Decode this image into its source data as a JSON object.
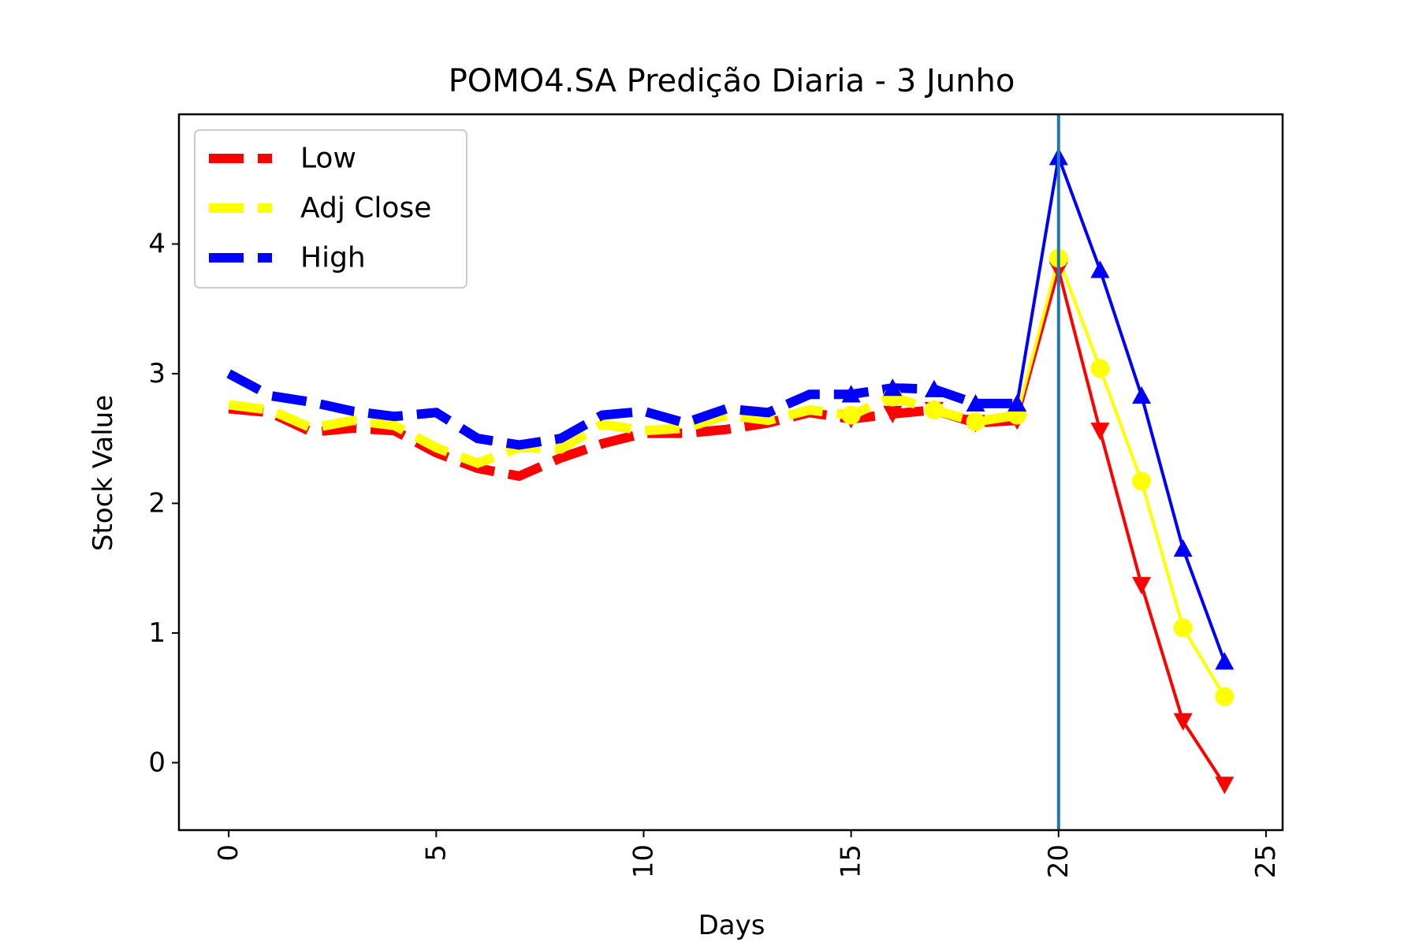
{
  "chart_data": {
    "type": "line",
    "title": "POMO4.SA Predição Diaria - 3 Junho",
    "xlabel": "Days",
    "ylabel": "Stock Value",
    "xlim": [
      -1.2,
      25.4
    ],
    "ylim": [
      -0.52,
      5.0
    ],
    "xticks": [
      0,
      5,
      10,
      15,
      20,
      25
    ],
    "yticks": [
      0,
      1,
      2,
      3,
      4
    ],
    "xtick_rotation": 90,
    "grid": false,
    "legend_position": "top-left",
    "vline": {
      "x": 20,
      "color": "#1f77b4"
    },
    "series": [
      {
        "name": "Low",
        "color": "#ff0000",
        "marker": "triangle-down",
        "historical": {
          "x": [
            0,
            1,
            2,
            3,
            4,
            5,
            6,
            7,
            8,
            9,
            10,
            11,
            12,
            13,
            14,
            15,
            16,
            17,
            18,
            19
          ],
          "y": [
            2.73,
            2.7,
            2.55,
            2.58,
            2.56,
            2.39,
            2.27,
            2.21,
            2.35,
            2.46,
            2.54,
            2.54,
            2.57,
            2.62,
            2.7,
            2.65,
            2.69,
            2.72,
            2.62,
            2.64
          ]
        },
        "predicted": {
          "x": [
            19,
            20,
            21,
            22,
            23,
            24
          ],
          "y": [
            2.64,
            3.8,
            2.56,
            1.37,
            0.32,
            -0.17
          ]
        }
      },
      {
        "name": "Adj Close",
        "color": "#ffff00",
        "marker": "circle",
        "historical": {
          "x": [
            0,
            1,
            2,
            3,
            4,
            5,
            6,
            7,
            8,
            9,
            10,
            11,
            12,
            13,
            14,
            15,
            16,
            17,
            18,
            19
          ],
          "y": [
            2.76,
            2.72,
            2.58,
            2.64,
            2.6,
            2.43,
            2.31,
            2.43,
            2.42,
            2.61,
            2.56,
            2.58,
            2.68,
            2.64,
            2.72,
            2.68,
            2.82,
            2.72,
            2.63,
            2.68
          ]
        },
        "predicted": {
          "x": [
            19,
            20,
            21,
            22,
            23,
            24
          ],
          "y": [
            2.68,
            3.89,
            3.04,
            2.17,
            1.04,
            0.51
          ]
        }
      },
      {
        "name": "High",
        "color": "#0000ff",
        "marker": "triangle-up",
        "historical": {
          "x": [
            0,
            1,
            2,
            3,
            4,
            5,
            6,
            7,
            8,
            9,
            10,
            11,
            12,
            13,
            14,
            15,
            16,
            17,
            18,
            19
          ],
          "y": [
            3.0,
            2.83,
            2.78,
            2.71,
            2.67,
            2.7,
            2.5,
            2.45,
            2.5,
            2.68,
            2.71,
            2.62,
            2.73,
            2.7,
            2.84,
            2.84,
            2.89,
            2.88,
            2.77,
            2.77
          ]
        },
        "predicted": {
          "x": [
            19,
            20,
            21,
            22,
            23,
            24
          ],
          "y": [
            2.77,
            4.67,
            3.8,
            2.83,
            1.65,
            0.78
          ]
        }
      }
    ]
  }
}
